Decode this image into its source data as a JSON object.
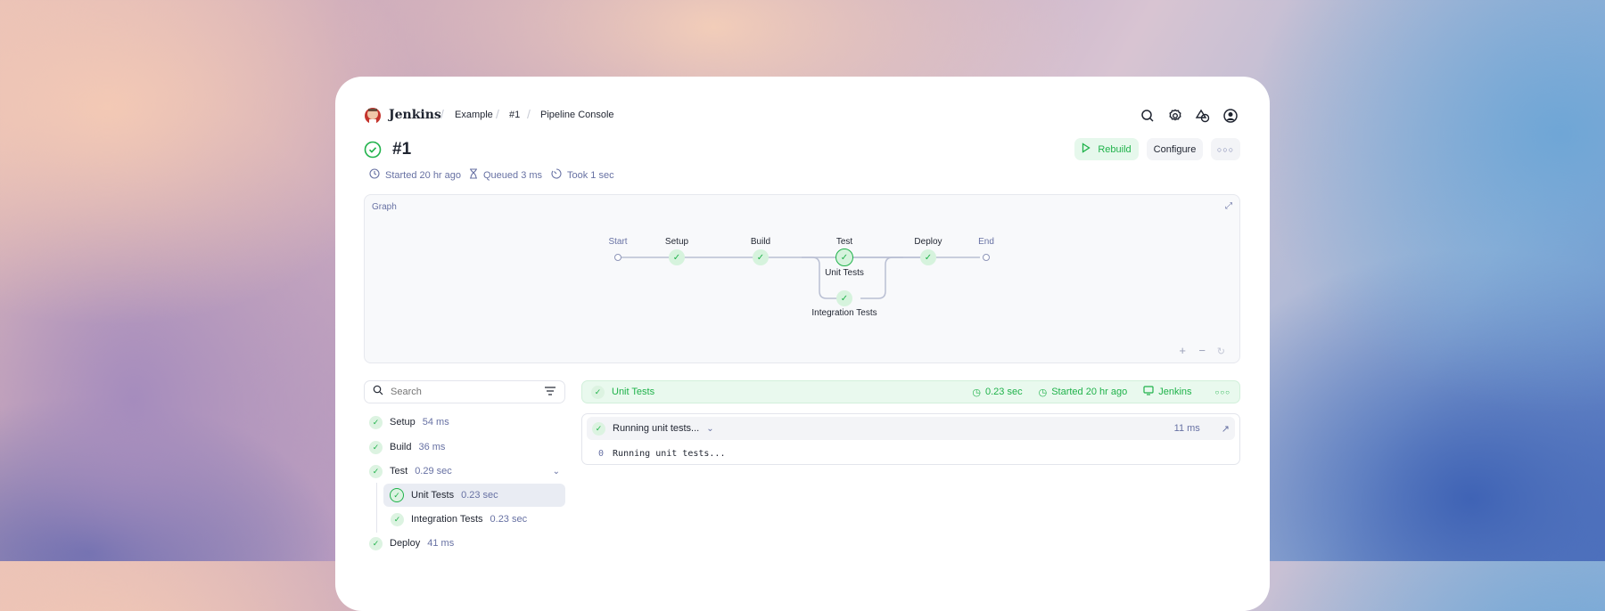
{
  "header": {
    "brand": "Jenkins",
    "breadcrumbs": [
      "Example",
      "#1",
      "Pipeline Console"
    ],
    "icons": [
      "search-icon",
      "gear-icon",
      "shapes-icon",
      "user-icon"
    ]
  },
  "build": {
    "title": "#1",
    "status": "success",
    "actions": {
      "rebuild": "Rebuild",
      "configure": "Configure"
    },
    "meta": {
      "started": "Started 20 hr ago",
      "queued": "Queued 3 ms",
      "took": "Took 1 sec"
    }
  },
  "graph": {
    "title": "Graph",
    "nodes": {
      "start": "Start",
      "setup": "Setup",
      "build": "Build",
      "test": "Test",
      "unit": "Unit Tests",
      "integration": "Integration Tests",
      "deploy": "Deploy",
      "end": "End"
    }
  },
  "sidebar": {
    "search_placeholder": "Search",
    "items": [
      {
        "label": "Setup",
        "duration": "54 ms"
      },
      {
        "label": "Build",
        "duration": "36 ms"
      },
      {
        "label": "Test",
        "duration": "0.29 sec"
      },
      {
        "label": "Unit Tests",
        "duration": "0.23 sec",
        "selected": true
      },
      {
        "label": "Integration Tests",
        "duration": "0.23 sec"
      },
      {
        "label": "Deploy",
        "duration": "41 ms"
      }
    ]
  },
  "stage": {
    "name": "Unit Tests",
    "duration": "0.23 sec",
    "started": "Started 20 hr ago",
    "agent": "Jenkins",
    "step": {
      "label": "Running unit tests...",
      "duration": "11 ms",
      "log": [
        {
          "line": "0",
          "text": "Running unit tests..."
        }
      ]
    }
  },
  "colors": {
    "success": "#1fb24a",
    "success_bg": "#e9f9ee",
    "muted": "#6771a3"
  }
}
